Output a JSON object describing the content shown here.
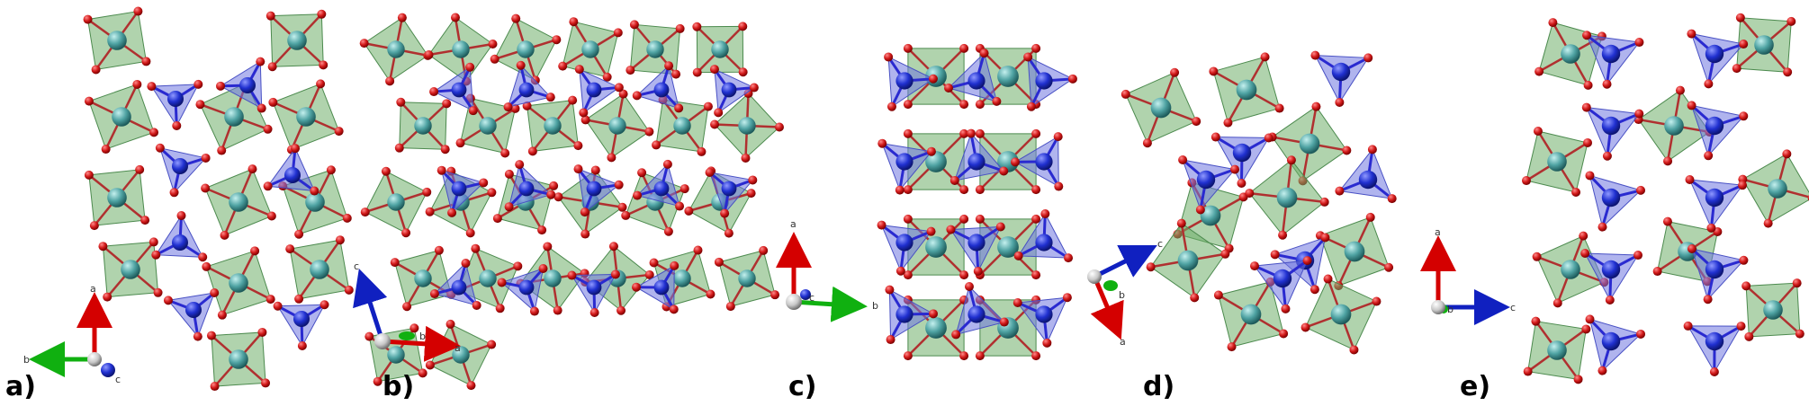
{
  "colors": {
    "octahedron_fill": "#6fae6a",
    "octahedron_edge": "#4c8a4e",
    "tetrahedron_fill": "#6f77e0",
    "tetrahedron_edge": "#4850c4",
    "octahedral_cation": "#4fa3a3",
    "tetrahedral_cation": "#2030d0",
    "oxygen": "#d21a1a",
    "axis_a": "#d40000",
    "axis_b": "#10b010",
    "axis_c": "#1020c0",
    "origin_sphere": "#c8c8c8"
  },
  "panels": [
    {
      "id": "a",
      "label": "a)",
      "axes": {
        "up": "a",
        "left": "b",
        "out": "c"
      }
    },
    {
      "id": "b",
      "label": "b)",
      "axes": {
        "up": "c",
        "right": "a",
        "out": "b"
      }
    },
    {
      "id": "c",
      "label": "c)",
      "axes": {
        "up": "a",
        "right": "b",
        "out": "c"
      }
    },
    {
      "id": "d",
      "label": "d)",
      "axes": {
        "upright": "c",
        "down": "a",
        "out": "b"
      }
    },
    {
      "id": "e",
      "label": "e)",
      "axes": {
        "up": "a",
        "right": "c",
        "out": "b"
      }
    }
  ]
}
